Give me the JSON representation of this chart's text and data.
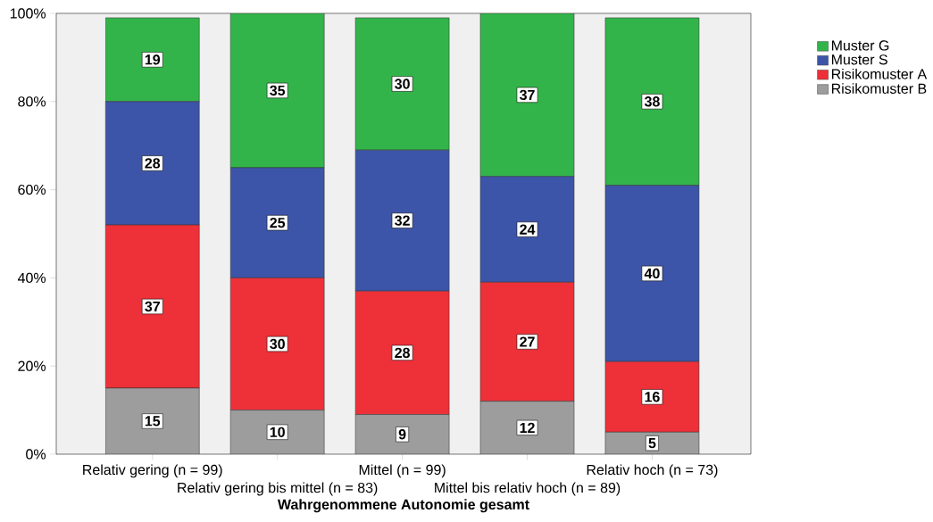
{
  "chart_data": {
    "type": "bar",
    "stacked": true,
    "xlabel": "Wahrgenommene Autonomie gesamt",
    "categories": [
      "Relativ gering (n = 99)",
      "Relativ gering bis mittel (n = 83)",
      "Mittel (n = 99)",
      "Mittel bis relativ hoch (n = 89)",
      "Relativ hoch (n = 73)"
    ],
    "series": [
      {
        "name": "Risikomuster B",
        "color": "#9d9d9d",
        "values": [
          15,
          10,
          9,
          12,
          5
        ],
        "value_labels": [
          "15",
          "10",
          "9",
          "12",
          "5"
        ]
      },
      {
        "name": "Risikomuster A",
        "color": "#ee3039",
        "values": [
          37,
          30,
          28,
          27,
          16
        ],
        "value_labels": [
          "37",
          "30",
          "28",
          "27",
          "16"
        ]
      },
      {
        "name": "Muster S",
        "color": "#3d55a8",
        "values": [
          28,
          25,
          32,
          24,
          40
        ],
        "value_labels": [
          "28",
          "25",
          "32",
          "24",
          "40"
        ]
      },
      {
        "name": "Muster G",
        "color": "#33b44a",
        "values": [
          19,
          35,
          30,
          37,
          38
        ],
        "value_labels": [
          "19",
          "35",
          "30",
          "37",
          "38"
        ]
      }
    ],
    "ylim": [
      0,
      100
    ],
    "yticks": [
      {
        "value": 0,
        "label": "0%"
      },
      {
        "value": 20,
        "label": "20%"
      },
      {
        "value": 40,
        "label": "40%"
      },
      {
        "value": 60,
        "label": "60%"
      },
      {
        "value": 80,
        "label": "80%"
      },
      {
        "value": 100,
        "label": "100%"
      }
    ],
    "data_labels": true,
    "legend": "right",
    "grid": false
  }
}
